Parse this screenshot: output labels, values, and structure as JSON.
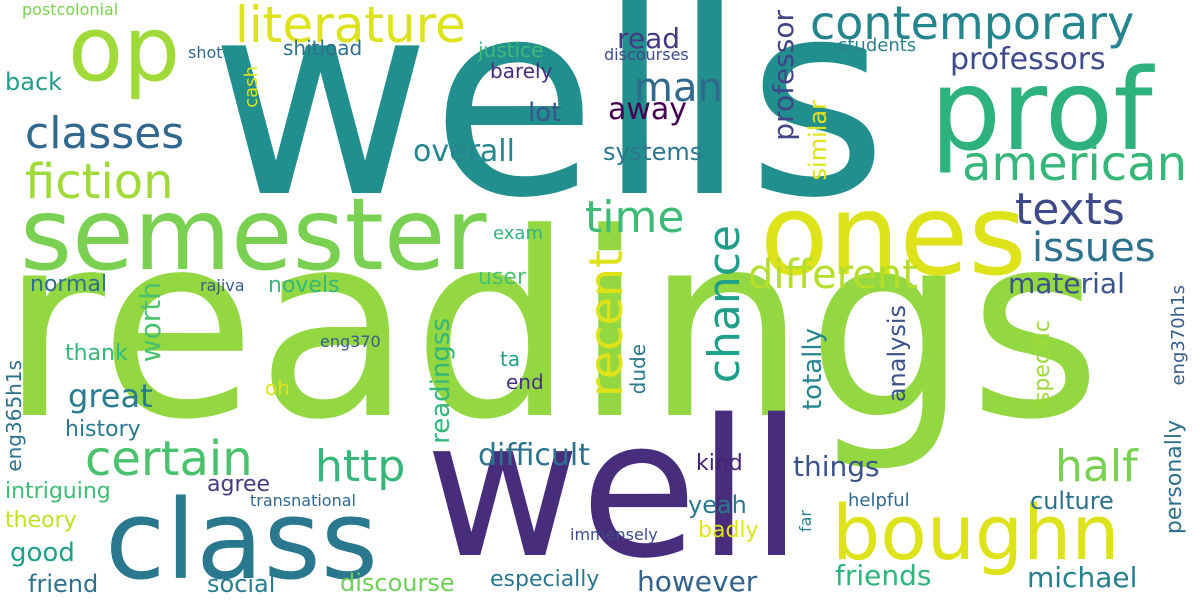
{
  "words": [
    {
      "text": "wells",
      "color": "#218f8d"
    },
    {
      "text": "readings",
      "color": "#93d741"
    },
    {
      "text": "well",
      "color": "#472d7b"
    },
    {
      "text": "class",
      "color": "#2a788e"
    },
    {
      "text": "semester",
      "color": "#7ad151"
    },
    {
      "text": "ones",
      "color": "#dde318"
    },
    {
      "text": "prof",
      "color": "#2db27d"
    },
    {
      "text": "op",
      "color": "#a0da39"
    },
    {
      "text": "boughn",
      "color": "#dde318"
    },
    {
      "text": "literature",
      "color": "#dde318"
    },
    {
      "text": "contemporary",
      "color": "#25858e"
    },
    {
      "text": "classes",
      "color": "#31688e"
    },
    {
      "text": "fiction",
      "color": "#a0da39"
    },
    {
      "text": "american",
      "color": "#35b779"
    },
    {
      "text": "texts",
      "color": "#3e4a89"
    },
    {
      "text": "issues",
      "color": "#2c728e"
    },
    {
      "text": "certain",
      "color": "#4ac16d"
    },
    {
      "text": "http",
      "color": "#35b779"
    },
    {
      "text": "half",
      "color": "#7ad151"
    },
    {
      "text": "time",
      "color": "#3bbb75"
    },
    {
      "text": "different",
      "color": "#b5de2b"
    },
    {
      "text": "man",
      "color": "#31688e"
    },
    {
      "text": "recent",
      "color": "#dde318"
    },
    {
      "text": "chance",
      "color": "#1f9e89"
    },
    {
      "text": "professor",
      "color": "#414487"
    },
    {
      "text": "similar",
      "color": "#dde318"
    },
    {
      "text": "professors",
      "color": "#3e4a89"
    },
    {
      "text": "material",
      "color": "#3b528b"
    },
    {
      "text": "read",
      "color": "#443a83"
    },
    {
      "text": "lot",
      "color": "#39568c"
    },
    {
      "text": "away",
      "color": "#440154"
    },
    {
      "text": "overall",
      "color": "#25858e"
    },
    {
      "text": "systems",
      "color": "#2a788e"
    },
    {
      "text": "difficult",
      "color": "#2c728e"
    },
    {
      "text": "things",
      "color": "#3b528b"
    },
    {
      "text": "great",
      "color": "#287c8e"
    },
    {
      "text": "worth",
      "color": "#4ac16d"
    },
    {
      "text": "readingss",
      "color": "#32b67a"
    },
    {
      "text": "friends",
      "color": "#2fb47c"
    },
    {
      "text": "michael",
      "color": "#277f8e"
    },
    {
      "text": "however",
      "color": "#33638d"
    },
    {
      "text": "discourse",
      "color": "#6ece58"
    },
    {
      "text": "especially",
      "color": "#2a788e"
    },
    {
      "text": "social",
      "color": "#287d8e"
    },
    {
      "text": "friend",
      "color": "#2c728e"
    },
    {
      "text": "good",
      "color": "#1fa088"
    },
    {
      "text": "theory",
      "color": "#c2df23"
    },
    {
      "text": "intriguing",
      "color": "#3dbc74"
    },
    {
      "text": "history",
      "color": "#2a788e"
    },
    {
      "text": "thank",
      "color": "#35b779"
    },
    {
      "text": "normal",
      "color": "#2d708e"
    },
    {
      "text": "novels",
      "color": "#35b779"
    },
    {
      "text": "back",
      "color": "#1f9e89"
    },
    {
      "text": "cash",
      "color": "#dde318"
    },
    {
      "text": "shot",
      "color": "#31688e"
    },
    {
      "text": "shitload",
      "color": "#2d708e"
    },
    {
      "text": "justice",
      "color": "#3aba76"
    },
    {
      "text": "barely",
      "color": "#472c7a"
    },
    {
      "text": "discourses",
      "color": "#3e4a89"
    },
    {
      "text": "students",
      "color": "#26828e"
    },
    {
      "text": "postcolonial",
      "color": "#7ad151"
    },
    {
      "text": "exam",
      "color": "#2fb47c"
    },
    {
      "text": "user",
      "color": "#4ac16d"
    },
    {
      "text": "rajiva",
      "color": "#365c8d"
    },
    {
      "text": "eng370",
      "color": "#365c8d"
    },
    {
      "text": "oh",
      "color": "#dde318"
    },
    {
      "text": "ta",
      "color": "#1fa088"
    },
    {
      "text": "end",
      "color": "#46337f"
    },
    {
      "text": "dude",
      "color": "#2a788e"
    },
    {
      "text": "kind",
      "color": "#482173"
    },
    {
      "text": "yeah",
      "color": "#2a788e"
    },
    {
      "text": "badly",
      "color": "#dde318"
    },
    {
      "text": "agree",
      "color": "#443b84"
    },
    {
      "text": "transnational",
      "color": "#31688e"
    },
    {
      "text": "immensely",
      "color": "#3e4a89"
    },
    {
      "text": "far",
      "color": "#25858e"
    },
    {
      "text": "helpful",
      "color": "#31688e"
    },
    {
      "text": "culture",
      "color": "#2c728e"
    },
    {
      "text": "personally",
      "color": "#2d708e"
    },
    {
      "text": "specific",
      "color": "#a0da39"
    },
    {
      "text": "analysis",
      "color": "#3b528b"
    },
    {
      "text": "totally",
      "color": "#25858e"
    },
    {
      "text": "eng370h1s",
      "color": "#365c8d"
    },
    {
      "text": "eng365h1s",
      "color": "#2c728e"
    }
  ]
}
